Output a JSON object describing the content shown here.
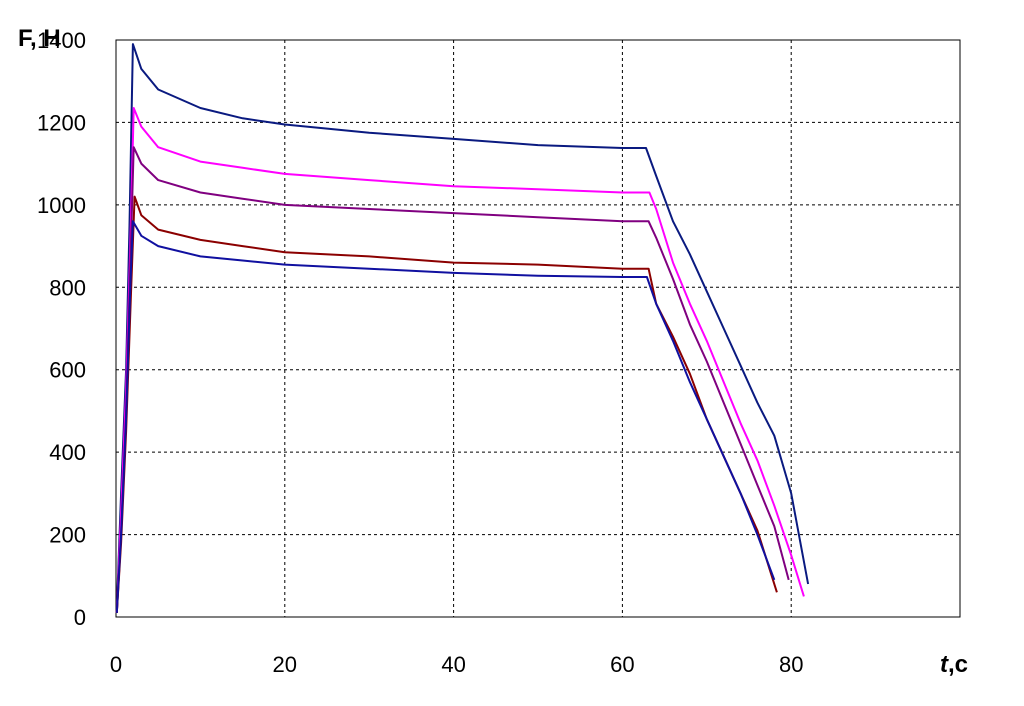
{
  "chart_data": {
    "type": "line",
    "ylabel": "F, H",
    "xlabel_var": "t",
    "xlabel_unit": ",c",
    "xlim": [
      0,
      100
    ],
    "ylim": [
      0,
      1400
    ],
    "x_ticks": [
      0,
      20,
      40,
      60,
      80
    ],
    "y_ticks": [
      0,
      200,
      400,
      600,
      800,
      1000,
      1200,
      1400
    ],
    "x_tick_labels": [
      "0",
      "20",
      "40",
      "60",
      "80"
    ],
    "y_tick_labels": [
      "0",
      "200",
      "400",
      "600",
      "800",
      "1000",
      "1200",
      "1400"
    ],
    "grid": true,
    "legend": "none",
    "series": [
      {
        "color": "#0a1a80",
        "points": [
          [
            0.1,
            20
          ],
          [
            0.6,
            300
          ],
          [
            1.2,
            600
          ],
          [
            1.6,
            950
          ],
          [
            2.0,
            1390
          ],
          [
            3,
            1330
          ],
          [
            5,
            1280
          ],
          [
            10,
            1235
          ],
          [
            15,
            1210
          ],
          [
            20,
            1195
          ],
          [
            30,
            1175
          ],
          [
            40,
            1160
          ],
          [
            50,
            1145
          ],
          [
            60,
            1138
          ],
          [
            62.8,
            1138
          ],
          [
            64,
            1070
          ],
          [
            66,
            960
          ],
          [
            68,
            880
          ],
          [
            70,
            790
          ],
          [
            72,
            700
          ],
          [
            74,
            610
          ],
          [
            76,
            520
          ],
          [
            78,
            440
          ],
          [
            80,
            300
          ],
          [
            82,
            80
          ]
        ]
      },
      {
        "color": "#ff00ff",
        "points": [
          [
            0.1,
            10
          ],
          [
            0.6,
            250
          ],
          [
            1.2,
            550
          ],
          [
            1.7,
            900
          ],
          [
            2.1,
            1235
          ],
          [
            3,
            1190
          ],
          [
            5,
            1140
          ],
          [
            10,
            1105
          ],
          [
            15,
            1090
          ],
          [
            20,
            1075
          ],
          [
            30,
            1060
          ],
          [
            40,
            1045
          ],
          [
            50,
            1038
          ],
          [
            60,
            1030
          ],
          [
            63.2,
            1030
          ],
          [
            64,
            990
          ],
          [
            66,
            860
          ],
          [
            68,
            760
          ],
          [
            70,
            670
          ],
          [
            72,
            570
          ],
          [
            74,
            470
          ],
          [
            76,
            380
          ],
          [
            78,
            270
          ],
          [
            80,
            150
          ],
          [
            81.5,
            50
          ]
        ]
      },
      {
        "color": "#800080",
        "points": [
          [
            0.1,
            10
          ],
          [
            0.6,
            200
          ],
          [
            1.2,
            500
          ],
          [
            1.7,
            850
          ],
          [
            2.1,
            1140
          ],
          [
            3,
            1100
          ],
          [
            5,
            1060
          ],
          [
            10,
            1030
          ],
          [
            15,
            1015
          ],
          [
            20,
            1000
          ],
          [
            30,
            990
          ],
          [
            40,
            980
          ],
          [
            50,
            970
          ],
          [
            60,
            960
          ],
          [
            63.1,
            960
          ],
          [
            64,
            920
          ],
          [
            66,
            820
          ],
          [
            68,
            710
          ],
          [
            70,
            620
          ],
          [
            72,
            520
          ],
          [
            74,
            420
          ],
          [
            76,
            320
          ],
          [
            78,
            220
          ],
          [
            79.7,
            90
          ]
        ]
      },
      {
        "color": "#8b0000",
        "points": [
          [
            0.1,
            10
          ],
          [
            0.6,
            180
          ],
          [
            1.2,
            450
          ],
          [
            1.8,
            800
          ],
          [
            2.2,
            1020
          ],
          [
            3,
            975
          ],
          [
            5,
            940
          ],
          [
            10,
            915
          ],
          [
            15,
            900
          ],
          [
            20,
            885
          ],
          [
            30,
            875
          ],
          [
            40,
            860
          ],
          [
            50,
            855
          ],
          [
            60,
            845
          ],
          [
            63.1,
            845
          ],
          [
            64,
            760
          ],
          [
            66,
            680
          ],
          [
            68,
            590
          ],
          [
            70,
            480
          ],
          [
            72,
            390
          ],
          [
            74,
            300
          ],
          [
            76,
            210
          ],
          [
            78.3,
            60
          ]
        ]
      },
      {
        "color": "#1010a0",
        "points": [
          [
            0.1,
            10
          ],
          [
            0.6,
            200
          ],
          [
            1.2,
            480
          ],
          [
            1.7,
            800
          ],
          [
            2.0,
            960
          ],
          [
            3,
            925
          ],
          [
            5,
            900
          ],
          [
            10,
            875
          ],
          [
            15,
            865
          ],
          [
            20,
            855
          ],
          [
            30,
            845
          ],
          [
            40,
            835
          ],
          [
            50,
            828
          ],
          [
            60,
            825
          ],
          [
            62.9,
            825
          ],
          [
            64,
            760
          ],
          [
            66,
            670
          ],
          [
            68,
            570
          ],
          [
            70,
            480
          ],
          [
            72,
            390
          ],
          [
            74,
            300
          ],
          [
            76,
            200
          ],
          [
            78,
            90
          ]
        ]
      }
    ]
  }
}
